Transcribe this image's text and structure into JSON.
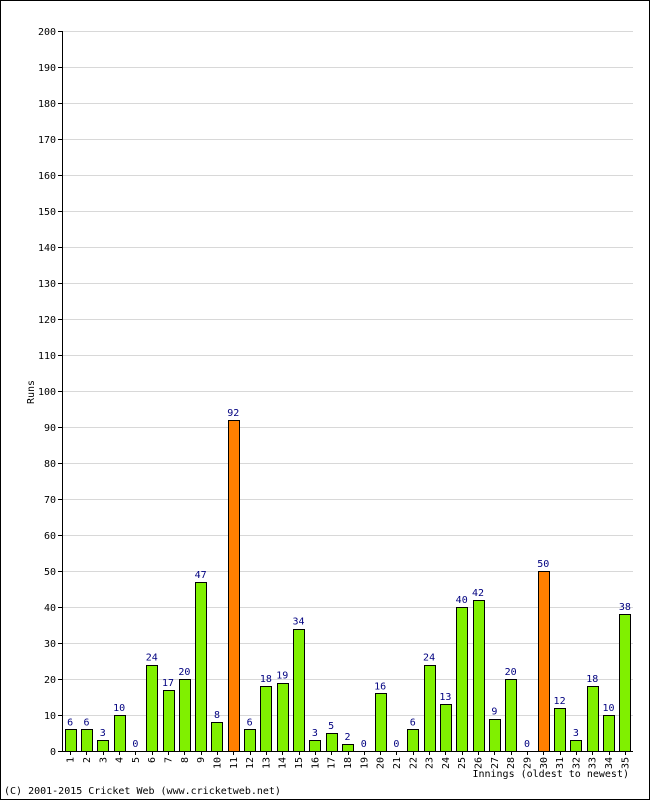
{
  "chart_data": {
    "type": "bar",
    "xlabel": "Innings (oldest to newest)",
    "ylabel": "Runs",
    "ylim": [
      0,
      200
    ],
    "y_ticks": [
      0,
      10,
      20,
      30,
      40,
      50,
      60,
      70,
      80,
      90,
      100,
      110,
      120,
      130,
      140,
      150,
      160,
      170,
      180,
      190,
      200
    ],
    "grid": true,
    "categories": [
      "1",
      "2",
      "3",
      "4",
      "5",
      "6",
      "7",
      "8",
      "9",
      "10",
      "11",
      "12",
      "13",
      "14",
      "15",
      "16",
      "17",
      "18",
      "19",
      "20",
      "21",
      "22",
      "23",
      "24",
      "25",
      "26",
      "27",
      "28",
      "29",
      "30",
      "31",
      "32",
      "33",
      "34",
      "35"
    ],
    "values": [
      6,
      6,
      3,
      10,
      0,
      24,
      17,
      20,
      47,
      8,
      92,
      6,
      18,
      19,
      34,
      3,
      5,
      2,
      0,
      16,
      0,
      6,
      24,
      13,
      40,
      42,
      9,
      20,
      0,
      50,
      12,
      3,
      18,
      10,
      38
    ],
    "highlight_threshold": 50,
    "colors": {
      "bar": "#80f000",
      "highlight": "#ff8000",
      "bar_stroke": "#000000",
      "data_label": "#000080",
      "grid": "#d8d8d8"
    }
  },
  "footer": {
    "copyright": "(C) 2001-2015 Cricket Web (www.cricketweb.net)"
  }
}
